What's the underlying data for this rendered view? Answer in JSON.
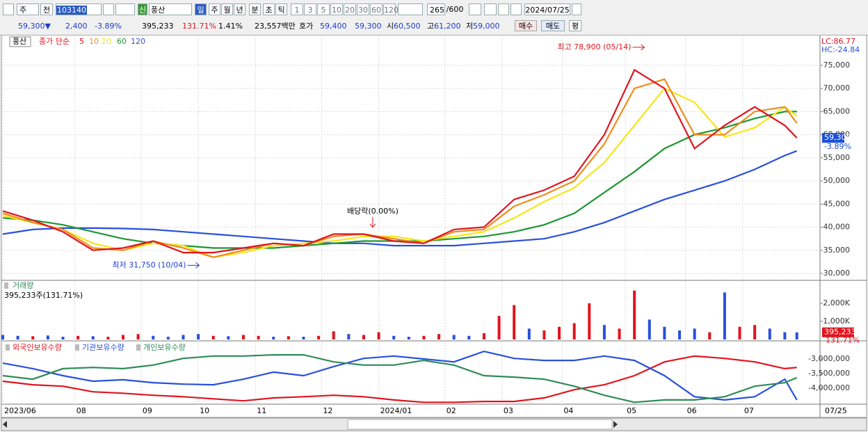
{
  "toolbar": {
    "market": "주",
    "mode": "전",
    "code": "103140",
    "new_badge": "신",
    "name": "풍산",
    "periods": [
      "일",
      "주",
      "월",
      "년",
      "분",
      "초",
      "틱"
    ],
    "intervals": [
      "1",
      "3",
      "5",
      "10",
      "20",
      "30",
      "60",
      "120"
    ],
    "count": "265",
    "count_max": "/600",
    "date": "2024/07/25"
  },
  "quote": {
    "price": "59,300▼",
    "change": "2,400",
    "change_pct": "-3.89%",
    "volume": "395,233",
    "volume_ratio": "131.71%",
    "turnover_ratio": "1.41%",
    "amount": "23,557백만",
    "ask_label": "호가",
    "ask": "59,400",
    "bid": "59,300",
    "open_label": "시",
    "open": "60,500",
    "high_label": "고",
    "high": "61,200",
    "low_label": "저",
    "low": "59,000",
    "buy": "매수",
    "sell": "매도",
    "avg": "평"
  },
  "chart_data": [
    {
      "type": "line",
      "title": "풍산",
      "legend_prefix": "종가 단순",
      "lc_label": "LC:86.77",
      "hc_label": "HC:-24.84",
      "x": [
        0,
        10,
        20,
        30,
        40,
        50,
        60,
        70,
        80,
        90,
        100,
        110,
        120,
        130,
        140,
        150,
        160,
        170,
        180,
        190,
        200,
        210,
        220,
        230,
        240,
        250,
        260,
        264
      ],
      "xlim": [
        0,
        265
      ],
      "ylim": [
        28650,
        81300
      ],
      "yticks": [
        {
          "value": 75000,
          "label": "75,000"
        },
        {
          "value": 70000,
          "label": "70,000"
        },
        {
          "value": 65000,
          "label": "65,000"
        },
        {
          "value": 60000,
          "label": "60,000"
        },
        {
          "value": 55000,
          "label": "55,000"
        },
        {
          "value": 50000,
          "label": "50,000"
        },
        {
          "value": 45000,
          "label": "45,000"
        },
        {
          "value": 40000,
          "label": "40,000"
        },
        {
          "value": 35000,
          "label": "35,000"
        },
        {
          "value": 30000,
          "label": "30,000"
        }
      ],
      "grid": true,
      "series": [
        {
          "name": "5",
          "color": "#e0141e",
          "values": [
            43500,
            41500,
            39000,
            35000,
            35500,
            37000,
            34500,
            34500,
            35500,
            36500,
            36000,
            38500,
            38500,
            37000,
            36500,
            39500,
            40000,
            46000,
            48000,
            51000,
            60000,
            74000,
            70000,
            57000,
            62000,
            66000,
            62000,
            59300
          ]
        },
        {
          "name": "10",
          "color": "#f08c1c",
          "values": [
            43000,
            41000,
            39500,
            35500,
            35000,
            37000,
            35500,
            33500,
            35000,
            36500,
            36000,
            38000,
            38500,
            37500,
            36500,
            39000,
            39500,
            44500,
            47000,
            50000,
            58000,
            70000,
            72000,
            60000,
            60000,
            65000,
            66000,
            62500
          ]
        },
        {
          "name": "20",
          "color": "#f5e614",
          "values": [
            42500,
            41000,
            39500,
            36500,
            35000,
            36500,
            36000,
            33500,
            34500,
            36000,
            36500,
            37000,
            38000,
            38000,
            37000,
            38000,
            39000,
            42000,
            45500,
            48500,
            54000,
            62000,
            70000,
            67000,
            59500,
            61500,
            66000,
            64000
          ]
        },
        {
          "name": "60",
          "color": "#1e9632",
          "values": [
            42000,
            41500,
            40500,
            39000,
            37500,
            36500,
            36000,
            35500,
            35500,
            35500,
            36000,
            36500,
            37000,
            37000,
            37000,
            37500,
            38000,
            39000,
            40500,
            43000,
            47500,
            52000,
            57000,
            60000,
            61500,
            63500,
            65000,
            65000
          ]
        },
        {
          "name": "120",
          "color": "#2850dc",
          "values": [
            38500,
            39500,
            39800,
            39800,
            39700,
            39500,
            39000,
            38500,
            38000,
            37500,
            37000,
            36500,
            36500,
            36000,
            36000,
            36000,
            36500,
            37000,
            37500,
            39000,
            41000,
            43500,
            46000,
            48000,
            50000,
            52500,
            55500,
            56500
          ]
        }
      ],
      "current": {
        "value": 59300,
        "label": "59,300",
        "change_label": "-3.89%"
      },
      "annotations": [
        {
          "text": "최고 78,900 (05/14)",
          "x": 214,
          "y": 78900
        },
        {
          "text": "최저 31,750 (10/04)",
          "x": 66,
          "y": 31750
        },
        {
          "text": "배당락(0.00%)",
          "x": 123,
          "y": 39500
        }
      ]
    },
    {
      "type": "bar",
      "title": "거래량",
      "subtitle": "395,233주(131.71%)",
      "x": [
        0,
        5,
        10,
        15,
        20,
        25,
        30,
        35,
        40,
        45,
        50,
        55,
        60,
        65,
        70,
        75,
        80,
        85,
        90,
        95,
        100,
        105,
        110,
        115,
        120,
        125,
        130,
        135,
        140,
        145,
        150,
        155,
        160,
        165,
        170,
        175,
        180,
        185,
        190,
        195,
        200,
        205,
        210,
        215,
        220,
        225,
        230,
        235,
        240,
        245,
        250,
        255,
        260,
        264
      ],
      "xlim": [
        0,
        265
      ],
      "ylim": [
        0,
        2920
      ],
      "yticks": [
        {
          "value": 2000,
          "label": "2,000K"
        },
        {
          "value": 1000,
          "label": "1,000K"
        }
      ],
      "values": [
        250,
        200,
        180,
        220,
        150,
        200,
        180,
        150,
        250,
        300,
        200,
        150,
        250,
        300,
        200,
        180,
        250,
        200,
        150,
        180,
        150,
        200,
        450,
        300,
        250,
        400,
        200,
        150,
        200,
        300,
        250,
        200,
        350,
        1300,
        1900,
        600,
        500,
        700,
        900,
        2000,
        800,
        600,
        2700,
        1100,
        700,
        500,
        600,
        400,
        2600,
        700,
        800,
        600,
        400,
        395.233
      ],
      "colors": [
        "#2850dc",
        "#2850dc",
        "#e0141e",
        "#2850dc",
        "#2850dc",
        "#e0141e",
        "#2850dc",
        "#e0141e",
        "#e0141e",
        "#e0141e",
        "#2850dc",
        "#2850dc",
        "#2850dc",
        "#2850dc",
        "#e0141e",
        "#2850dc",
        "#e0141e",
        "#e0141e",
        "#2850dc",
        "#e0141e",
        "#2850dc",
        "#e0141e",
        "#e0141e",
        "#2850dc",
        "#e0141e",
        "#e0141e",
        "#2850dc",
        "#2850dc",
        "#e0141e",
        "#e0141e",
        "#2850dc",
        "#2850dc",
        "#e0141e",
        "#e0141e",
        "#e0141e",
        "#2850dc",
        "#e0141e",
        "#e0141e",
        "#e0141e",
        "#e0141e",
        "#2850dc",
        "#e0141e",
        "#e0141e",
        "#2850dc",
        "#2850dc",
        "#2850dc",
        "#2850dc",
        "#e0141e",
        "#2850dc",
        "#e0141e",
        "#e0141e",
        "#2850dc",
        "#2850dc",
        "#2850dc"
      ],
      "current_label": "395,233",
      "current_pct": "131.71%"
    },
    {
      "type": "line",
      "x": [
        0,
        10,
        20,
        30,
        40,
        50,
        60,
        70,
        80,
        90,
        100,
        110,
        120,
        130,
        140,
        150,
        160,
        170,
        180,
        190,
        200,
        210,
        220,
        230,
        240,
        250,
        260,
        264
      ],
      "xlim": [
        0,
        265
      ],
      "ylim": [
        -4520000,
        -2430000
      ],
      "yticks": [
        {
          "value": -3000000,
          "label": "-3,000,000"
        },
        {
          "value": -3500000,
          "label": "-3,500,000"
        },
        {
          "value": -4000000,
          "label": "-4,000,000"
        }
      ],
      "xticks": [
        {
          "value": 0,
          "label": "2023/06"
        },
        {
          "value": 24,
          "label": "08"
        },
        {
          "value": 46,
          "label": "09"
        },
        {
          "value": 65,
          "label": "10"
        },
        {
          "value": 84,
          "label": "11"
        },
        {
          "value": 106,
          "label": "12"
        },
        {
          "value": 125,
          "label": "2024/01"
        },
        {
          "value": 147,
          "label": "02"
        },
        {
          "value": 166,
          "label": "03"
        },
        {
          "value": 186,
          "label": "04"
        },
        {
          "value": 207,
          "label": "05"
        },
        {
          "value": 227,
          "label": "06"
        },
        {
          "value": 246,
          "label": "07"
        }
      ],
      "end_label": "07/25",
      "series": [
        {
          "name": "외국인보유수량",
          "color": "#e0141e",
          "values": [
            -3760000,
            -3880000,
            -3930000,
            -4120000,
            -4170000,
            -4240000,
            -4290000,
            -4360000,
            -4430000,
            -4330000,
            -4290000,
            -4240000,
            -4290000,
            -4400000,
            -4480000,
            -4480000,
            -4450000,
            -4450000,
            -4330000,
            -4050000,
            -3880000,
            -3570000,
            -3100000,
            -2900000,
            -2980000,
            -3100000,
            -3330000,
            -3290000
          ]
        },
        {
          "name": "기관보유수량",
          "color": "#2850dc",
          "values": [
            -3140000,
            -3330000,
            -3570000,
            -3760000,
            -3710000,
            -3810000,
            -3860000,
            -3880000,
            -3690000,
            -3450000,
            -3570000,
            -3260000,
            -2980000,
            -2900000,
            -3000000,
            -3100000,
            -2740000,
            -2980000,
            -3050000,
            -3050000,
            -2900000,
            -3050000,
            -3570000,
            -4290000,
            -4400000,
            -4290000,
            -3690000,
            -4400000
          ]
        },
        {
          "name": "개인보유수량",
          "color": "#2e8b57",
          "values": [
            -3570000,
            -3690000,
            -3330000,
            -3290000,
            -3330000,
            -3210000,
            -2980000,
            -2900000,
            -2900000,
            -2860000,
            -2860000,
            -3100000,
            -3210000,
            -3210000,
            -3050000,
            -3210000,
            -3570000,
            -3620000,
            -3690000,
            -3930000,
            -4240000,
            -4480000,
            -4400000,
            -4400000,
            -4290000,
            -3930000,
            -3810000,
            -3640000
          ]
        }
      ]
    }
  ]
}
